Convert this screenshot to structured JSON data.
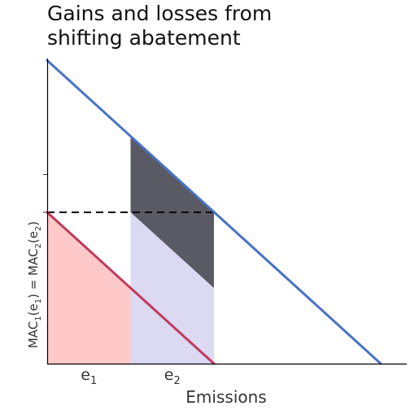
{
  "title_line1": "Gains and losses from",
  "title_line2": "shifting abatement",
  "chart_data": {
    "type": "area",
    "title": "Gains and losses from shifting abatement",
    "xlabel": "Emissions",
    "ylabel_parts": [
      "MAC",
      "1",
      "(e",
      "1",
      ") = MAC",
      "2",
      "(e",
      "2",
      ")"
    ],
    "xlim": [
      0,
      10
    ],
    "ylim": [
      0,
      10
    ],
    "x_tick_labels": [
      {
        "x": 1.25,
        "main": "e",
        "sub": "1"
      },
      {
        "x": 3.75,
        "main": "e",
        "sub": "2"
      }
    ],
    "y_ticks": [
      4.96,
      6.2
    ],
    "series": [
      {
        "key": "mac1",
        "color": "#c0395a",
        "points": [
          [
            0,
            4.96
          ],
          [
            5,
            0
          ]
        ]
      },
      {
        "key": "mac2",
        "color": "#4a72c4",
        "points": [
          [
            0,
            9.94
          ],
          [
            10,
            0
          ]
        ]
      }
    ],
    "reference_line": {
      "y": 4.96,
      "x_from": 0,
      "x_to": 5,
      "style": "dashed",
      "color": "#000000"
    },
    "regions": [
      {
        "key": "gain-area",
        "color": "#ffc9c9",
        "points": [
          [
            0,
            0
          ],
          [
            0,
            4.96
          ],
          [
            2.5,
            2.48
          ],
          [
            2.5,
            0
          ]
        ]
      },
      {
        "key": "cost-area",
        "color": "#dcd9f2",
        "points": [
          [
            2.5,
            0
          ],
          [
            2.5,
            4.96
          ],
          [
            5,
            4.96
          ],
          [
            5,
            0
          ]
        ]
      },
      {
        "key": "loss-area",
        "color": "#5a5a64",
        "points": [
          [
            2.5,
            4.96
          ],
          [
            2.5,
            7.45
          ],
          [
            5,
            4.96
          ],
          [
            5,
            2.48
          ]
        ]
      }
    ]
  }
}
